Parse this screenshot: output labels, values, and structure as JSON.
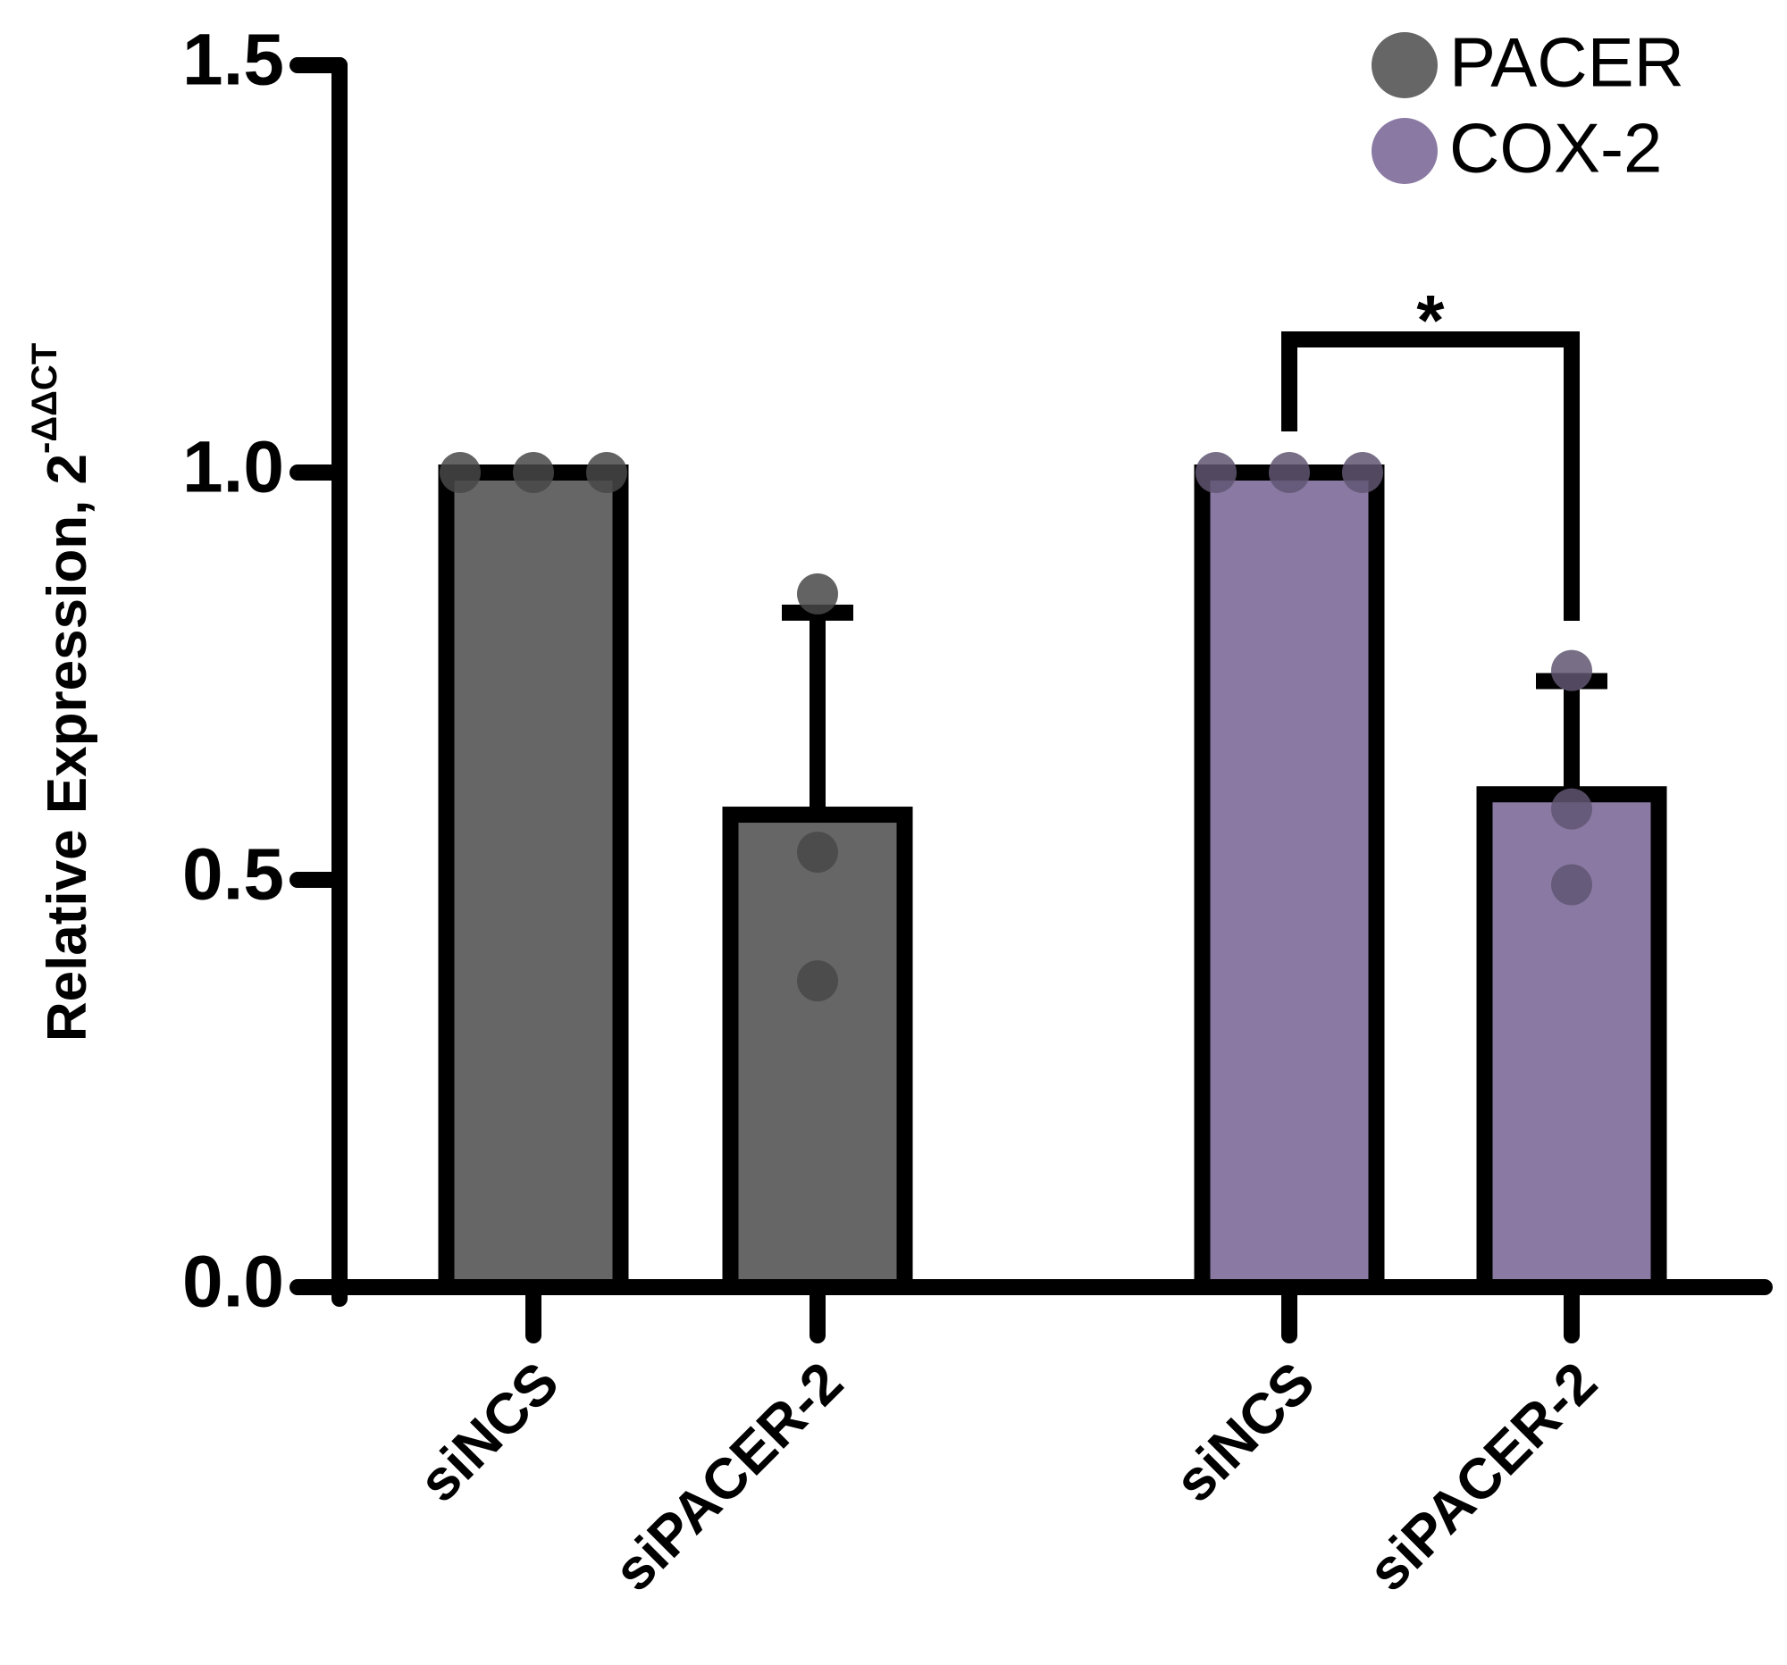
{
  "chart_data": {
    "type": "bar",
    "ylabel": "Relative Expression, 2",
    "ylabel_superscript": "-ΔΔCT",
    "categories": [
      "siNCS",
      "siPACER-2",
      "siNCS",
      "siPACER-2"
    ],
    "series": [
      {
        "name": "PACER",
        "color": "#666666",
        "values": [
          1.0,
          0.58,
          null,
          null
        ],
        "errors": [
          null,
          0.248,
          null,
          null
        ],
        "points": [
          [
            1.0,
            1.0,
            1.0
          ],
          [
            0.851,
            0.534,
            0.376
          ],
          null,
          null
        ]
      },
      {
        "name": "COX-2",
        "color": "#8a7aa3",
        "values": [
          null,
          null,
          1.0,
          0.605
        ],
        "errors": [
          null,
          null,
          null,
          0.139
        ],
        "points": [
          null,
          null,
          [
            1.0,
            1.0,
            1.0
          ],
          [
            0.757,
            0.587,
            0.494
          ]
        ]
      }
    ],
    "significance": {
      "label": "*",
      "between": [
        2,
        3
      ]
    },
    "ylim": [
      0,
      1.5
    ],
    "yticks": [
      {
        "value": 0,
        "label": "0.0"
      },
      {
        "value": 0.5,
        "label": "0.5"
      },
      {
        "value": 1,
        "label": "1.0"
      },
      {
        "value": 1.5,
        "label": "1.5"
      }
    ],
    "legend": "top-right"
  }
}
